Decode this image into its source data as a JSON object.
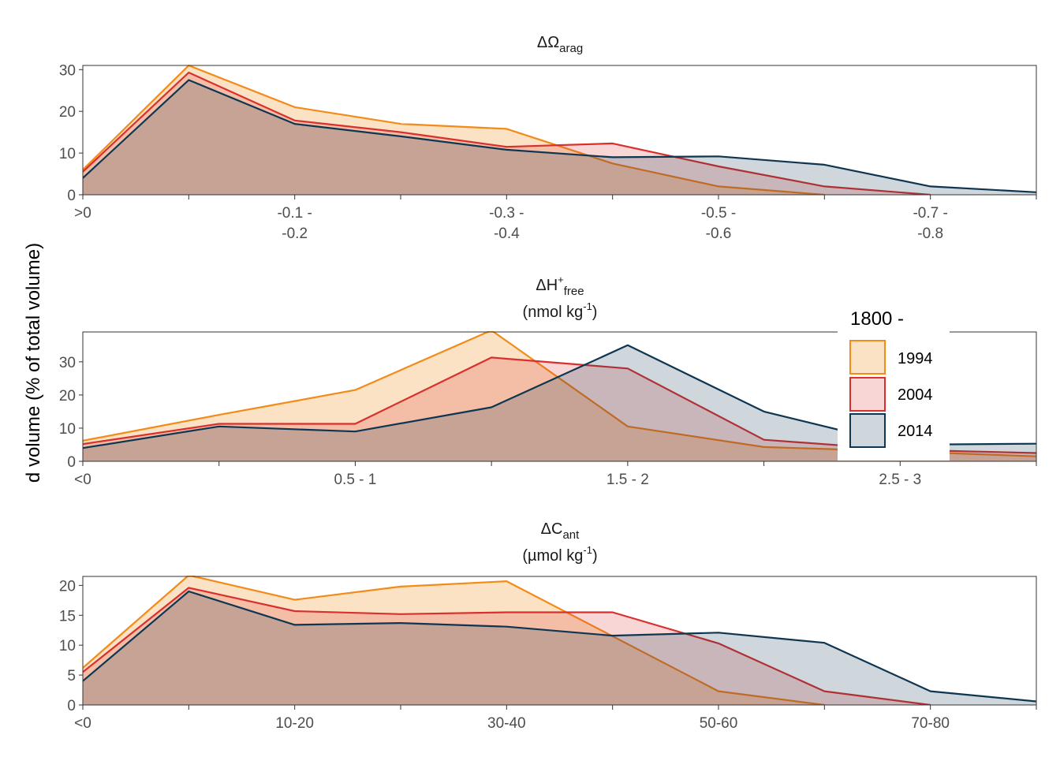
{
  "y_axis_label": "d volume (% of total volume)",
  "legend": {
    "title": "1800 -",
    "entries": [
      "1994",
      "2004",
      "2014"
    ]
  },
  "colors": {
    "1994": "#f28b18",
    "2004": "#d8302f",
    "2014": "#0e3652",
    "axis": "#333333",
    "tick_text": "#4d4d4d"
  },
  "chart_data": [
    {
      "type": "area",
      "title_main": "ΔΩ",
      "title_sub": "arag",
      "x_tick_labels": [
        ">0",
        "",
        "-0.1 -\n-0.2",
        "",
        "-0.3 -\n-0.4",
        "",
        "-0.5 -\n-0.6",
        "",
        "-0.7 -\n-0.8",
        ""
      ],
      "ylim": [
        0,
        31
      ],
      "y_ticks": [
        0,
        10,
        20,
        30
      ],
      "grid": false,
      "series": [
        {
          "name": "1994",
          "values": [
            6,
            31,
            21,
            17,
            15.8,
            7.5,
            2,
            0,
            null,
            null
          ]
        },
        {
          "name": "2004",
          "values": [
            5.5,
            29.3,
            17.8,
            15,
            11.5,
            12.3,
            6.8,
            2,
            0,
            null
          ]
        },
        {
          "name": "2014",
          "values": [
            4,
            27.5,
            17,
            14,
            10.8,
            9,
            9.2,
            7.2,
            2,
            0.6
          ]
        }
      ]
    },
    {
      "type": "area",
      "title_main": "ΔH",
      "title_sup": "+",
      "title_sub": "free",
      "title_unit": "(nmol kg",
      "title_unit_sup": "-1",
      "title_unit_end": ")",
      "x_tick_labels": [
        "<0",
        "",
        "0.5 - 1",
        "",
        "1.5 - 2",
        "",
        "2.5 - 3",
        ""
      ],
      "ylim": [
        0,
        39
      ],
      "y_ticks": [
        0,
        10,
        20,
        30
      ],
      "grid": false,
      "series": [
        {
          "name": "1994",
          "values": [
            6.2,
            14,
            21.5,
            39.5,
            10.5,
            4.3,
            3,
            1.5
          ]
        },
        {
          "name": "2004",
          "values": [
            5.2,
            11.3,
            11.3,
            31.3,
            28,
            6.5,
            3.5,
            2.5
          ]
        },
        {
          "name": "2014",
          "values": [
            4,
            10.5,
            9,
            16.3,
            35,
            15,
            5,
            5.3
          ]
        }
      ]
    },
    {
      "type": "area",
      "title_main": "ΔC",
      "title_sub": "ant",
      "title_unit": "(µmol kg",
      "title_unit_sup": "-1",
      "title_unit_end": ")",
      "x_tick_labels": [
        "<0",
        "",
        "10-20",
        "",
        "30-40",
        "",
        "50-60",
        "",
        "70-80",
        ""
      ],
      "ylim": [
        0,
        21.5
      ],
      "y_ticks": [
        0,
        5,
        10,
        15,
        20
      ],
      "grid": false,
      "series": [
        {
          "name": "1994",
          "values": [
            6.2,
            21.7,
            17.6,
            19.8,
            20.7,
            11.5,
            2.3,
            0,
            null,
            null
          ]
        },
        {
          "name": "2004",
          "values": [
            5.5,
            19.6,
            15.7,
            15.2,
            15.5,
            15.5,
            10.3,
            2.3,
            0,
            null
          ]
        },
        {
          "name": "2014",
          "values": [
            4,
            19,
            13.4,
            13.7,
            13.1,
            11.6,
            12.1,
            10.4,
            2.3,
            0.6
          ]
        }
      ]
    }
  ]
}
